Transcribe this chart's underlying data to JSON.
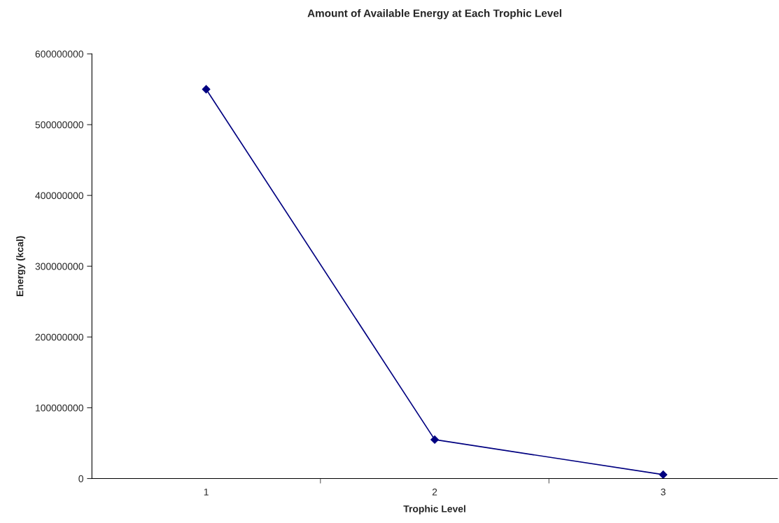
{
  "chart_data": {
    "type": "line",
    "title": "Amount of Available Energy at Each Trophic Level",
    "xlabel": "Trophic Level",
    "ylabel": "Energy (kcal)",
    "categories": [
      "1",
      "2",
      "3"
    ],
    "series": [
      {
        "color": "#000080",
        "values": [
          550000000,
          55000000,
          5500000
        ]
      }
    ],
    "ylim": [
      0,
      600000000
    ],
    "yticks": [
      0,
      100000000,
      200000000,
      300000000,
      400000000,
      500000000,
      600000000
    ],
    "marker": "diamond",
    "line_style": "solid",
    "grid": false,
    "legend": false
  }
}
